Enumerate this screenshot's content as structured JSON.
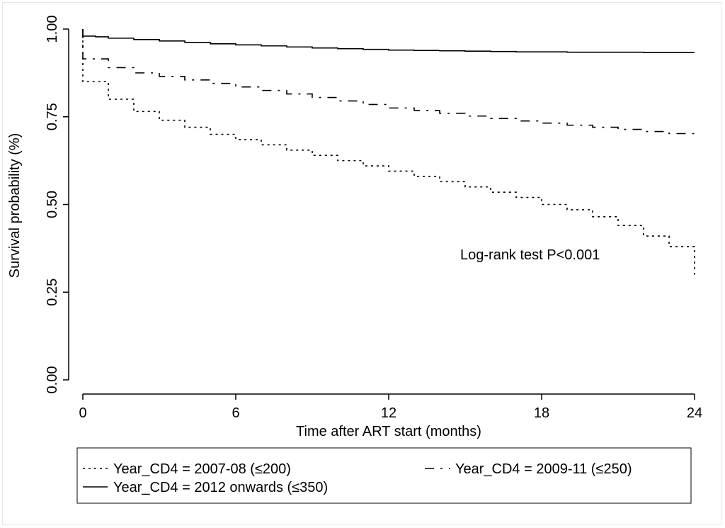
{
  "chart_data": {
    "type": "line",
    "subtype": "kaplan-meier step",
    "title": "",
    "xlabel": "Time after ART start (months)",
    "ylabel": "Survival probability (%)",
    "xlim": [
      0,
      24
    ],
    "ylim": [
      0,
      1
    ],
    "xticks": [
      0,
      6,
      12,
      18,
      24
    ],
    "xtick_labels": [
      "0",
      "6",
      "12",
      "18",
      "24"
    ],
    "yticks": [
      0,
      0.25,
      0.5,
      0.75,
      1.0
    ],
    "ytick_labels": [
      "0.00",
      "0.25",
      "0.50",
      "0.75",
      "1.00"
    ],
    "grid": false,
    "annotation": "Log-rank test P<0.001",
    "legend_position": "bottom",
    "series": [
      {
        "name": "Year_CD4 = 2007-08 (≤200)",
        "style": "dotted",
        "x": [
          0,
          1,
          2,
          3,
          4,
          5,
          6,
          7,
          8,
          9,
          10,
          11,
          12,
          13,
          14,
          15,
          16,
          17,
          18,
          19,
          20,
          21,
          22,
          23,
          24,
          24
        ],
        "y": [
          0.85,
          0.8,
          0.765,
          0.74,
          0.72,
          0.7,
          0.685,
          0.67,
          0.655,
          0.64,
          0.625,
          0.61,
          0.595,
          0.58,
          0.565,
          0.55,
          0.535,
          0.52,
          0.5,
          0.485,
          0.465,
          0.44,
          0.41,
          0.38,
          0.38,
          0.3
        ]
      },
      {
        "name": "Year_CD4 = 2009-11 (≤250)",
        "style": "dashed",
        "x": [
          0,
          1,
          2,
          3,
          4,
          5,
          6,
          7,
          8,
          9,
          10,
          11,
          12,
          13,
          14,
          15,
          16,
          17,
          18,
          19,
          20,
          21,
          22,
          23,
          24,
          24
        ],
        "y": [
          0.915,
          0.89,
          0.875,
          0.865,
          0.855,
          0.845,
          0.835,
          0.825,
          0.815,
          0.805,
          0.795,
          0.785,
          0.775,
          0.768,
          0.76,
          0.752,
          0.745,
          0.738,
          0.732,
          0.726,
          0.72,
          0.714,
          0.708,
          0.702,
          0.7,
          0.69
        ]
      },
      {
        "name": "Year_CD4 = 2012 onwards (≤350)",
        "style": "solid",
        "x": [
          0,
          0.5,
          1,
          2,
          3,
          4,
          5,
          6,
          7,
          8,
          9,
          10,
          11,
          12,
          13,
          14,
          15,
          16,
          17,
          18,
          19,
          20,
          21,
          22,
          23,
          24
        ],
        "y": [
          0.98,
          0.978,
          0.974,
          0.97,
          0.966,
          0.962,
          0.958,
          0.955,
          0.952,
          0.949,
          0.946,
          0.944,
          0.942,
          0.94,
          0.939,
          0.938,
          0.937,
          0.936,
          0.935,
          0.935,
          0.934,
          0.934,
          0.934,
          0.933,
          0.933,
          0.933
        ]
      }
    ]
  }
}
